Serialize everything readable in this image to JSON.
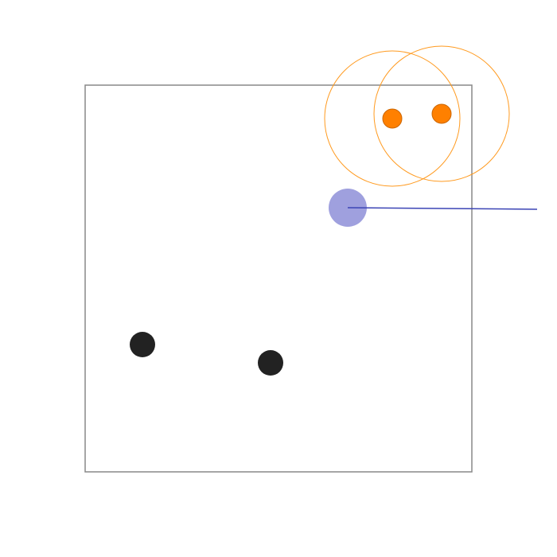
{
  "colors": {
    "background": "#ffffff",
    "arena_border": "#888888",
    "player_fill": "#9fa0de",
    "player_aim_line": "#3b44b5",
    "orange_fill": "#ff8000",
    "orange_stroke": "#cc6600",
    "orange_range": "#ff9a1f",
    "black_fill": "#222222"
  },
  "entities": {
    "player": {
      "kind": "player-agent"
    },
    "orange_units": [
      {
        "kind": "orange-unit",
        "has_range_ring": true
      },
      {
        "kind": "orange-unit",
        "has_range_ring": true
      }
    ],
    "black_units": [
      {
        "kind": "black-unit"
      },
      {
        "kind": "black-unit"
      }
    ]
  }
}
